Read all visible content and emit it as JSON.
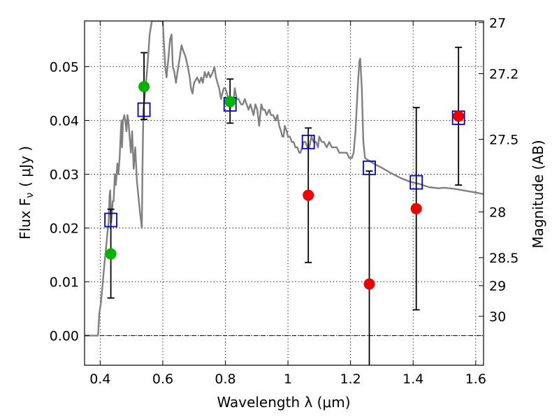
{
  "chart_data": {
    "type": "scatter",
    "xlabel": "Wavelength  λ (μm)",
    "ylabel": "Flux  F",
    "ylabel_sub": "ν",
    "ylabel_unit": "( μJy )",
    "y2label": "Magnitude (AB)",
    "xlim": [
      0.35,
      1.625
    ],
    "ylim": [
      -0.0055,
      0.0585
    ],
    "grid": true,
    "xticks": [
      {
        "value": 0.4,
        "label": "0.4"
      },
      {
        "value": 0.6,
        "label": "0.6"
      },
      {
        "value": 0.8,
        "label": "0.8"
      },
      {
        "value": 1.0,
        "label": "1"
      },
      {
        "value": 1.2,
        "label": "1.2"
      },
      {
        "value": 1.4,
        "label": "1.4"
      },
      {
        "value": 1.6,
        "label": "1.6"
      }
    ],
    "yticks": [
      {
        "value": 0.0,
        "label": "0.00"
      },
      {
        "value": 0.01,
        "label": "0.01"
      },
      {
        "value": 0.02,
        "label": "0.02"
      },
      {
        "value": 0.03,
        "label": "0.03"
      },
      {
        "value": 0.04,
        "label": "0.04"
      },
      {
        "value": 0.05,
        "label": "0.05"
      }
    ],
    "y2ticks": [
      {
        "flux": 0.0582,
        "label": "27"
      },
      {
        "flux": 0.0487,
        "label": "27.2"
      },
      {
        "flux": 0.0365,
        "label": "27.5"
      },
      {
        "flux": 0.023,
        "label": "28"
      },
      {
        "flux": 0.0145,
        "label": "28.5"
      },
      {
        "flux": 0.0093,
        "label": "29"
      },
      {
        "flux": 0.0036,
        "label": "30"
      }
    ],
    "model_spectrum": {
      "color": "#808080",
      "points": [
        [
          0.35,
          0.0
        ],
        [
          0.39,
          0.0
        ],
        [
          0.393,
          0.0
        ],
        [
          0.397,
          0.004
        ],
        [
          0.402,
          0.006
        ],
        [
          0.407,
          0.009
        ],
        [
          0.413,
          0.013
        ],
        [
          0.418,
          0.016
        ],
        [
          0.423,
          0.019
        ],
        [
          0.427,
          0.021
        ],
        [
          0.43,
          0.026
        ],
        [
          0.432,
          0.027
        ],
        [
          0.435,
          0.021
        ],
        [
          0.438,
          0.023
        ],
        [
          0.44,
          0.025
        ],
        [
          0.443,
          0.025
        ],
        [
          0.447,
          0.03
        ],
        [
          0.45,
          0.028
        ],
        [
          0.455,
          0.032
        ],
        [
          0.458,
          0.03
        ],
        [
          0.462,
          0.033
        ],
        [
          0.466,
          0.038
        ],
        [
          0.468,
          0.04
        ],
        [
          0.47,
          0.035
        ],
        [
          0.473,
          0.04
        ],
        [
          0.477,
          0.041
        ],
        [
          0.48,
          0.04
        ],
        [
          0.484,
          0.038
        ],
        [
          0.487,
          0.041
        ],
        [
          0.49,
          0.04
        ],
        [
          0.494,
          0.037
        ],
        [
          0.498,
          0.034
        ],
        [
          0.502,
          0.038
        ],
        [
          0.507,
          0.031
        ],
        [
          0.512,
          0.035
        ],
        [
          0.517,
          0.029
        ],
        [
          0.522,
          0.026
        ],
        [
          0.527,
          0.023
        ],
        [
          0.531,
          0.021
        ],
        [
          0.533,
          0.02
        ],
        [
          0.535,
          0.031
        ],
        [
          0.538,
          0.042
        ],
        [
          0.545,
          0.046
        ],
        [
          0.552,
          0.051
        ],
        [
          0.558,
          0.056
        ],
        [
          0.565,
          0.0585
        ],
        [
          0.6,
          0.0585
        ],
        [
          0.603,
          0.055
        ],
        [
          0.608,
          0.05
        ],
        [
          0.612,
          0.048
        ],
        [
          0.617,
          0.051
        ],
        [
          0.623,
          0.055
        ],
        [
          0.628,
          0.056
        ],
        [
          0.632,
          0.05
        ],
        [
          0.637,
          0.049
        ],
        [
          0.642,
          0.047
        ],
        [
          0.647,
          0.049
        ],
        [
          0.655,
          0.052
        ],
        [
          0.66,
          0.054
        ],
        [
          0.665,
          0.053
        ],
        [
          0.672,
          0.052
        ],
        [
          0.68,
          0.05
        ],
        [
          0.686,
          0.048
        ],
        [
          0.69,
          0.046
        ],
        [
          0.695,
          0.045
        ],
        [
          0.7,
          0.047
        ],
        [
          0.71,
          0.048
        ],
        [
          0.717,
          0.047
        ],
        [
          0.723,
          0.048
        ],
        [
          0.728,
          0.047
        ],
        [
          0.734,
          0.049
        ],
        [
          0.74,
          0.048
        ],
        [
          0.746,
          0.049
        ],
        [
          0.752,
          0.048
        ],
        [
          0.76,
          0.049
        ],
        [
          0.765,
          0.05
        ],
        [
          0.77,
          0.048
        ],
        [
          0.775,
          0.047
        ],
        [
          0.78,
          0.046
        ],
        [
          0.786,
          0.044
        ],
        [
          0.79,
          0.045
        ],
        [
          0.795,
          0.046
        ],
        [
          0.8,
          0.046
        ],
        [
          0.805,
          0.045
        ],
        [
          0.81,
          0.044
        ],
        [
          0.815,
          0.042
        ],
        [
          0.82,
          0.044
        ],
        [
          0.825,
          0.043
        ],
        [
          0.83,
          0.046
        ],
        [
          0.836,
          0.044
        ],
        [
          0.842,
          0.044
        ],
        [
          0.85,
          0.043
        ],
        [
          0.856,
          0.043
        ],
        [
          0.862,
          0.044
        ],
        [
          0.868,
          0.043
        ],
        [
          0.874,
          0.042
        ],
        [
          0.88,
          0.043
        ],
        [
          0.885,
          0.042
        ],
        [
          0.89,
          0.041
        ],
        [
          0.896,
          0.043
        ],
        [
          0.902,
          0.042
        ],
        [
          0.908,
          0.039
        ],
        [
          0.915,
          0.043
        ],
        [
          0.92,
          0.042
        ],
        [
          0.926,
          0.042
        ],
        [
          0.932,
          0.041
        ],
        [
          0.94,
          0.042
        ],
        [
          0.946,
          0.041
        ],
        [
          0.953,
          0.041
        ],
        [
          0.96,
          0.04
        ],
        [
          0.966,
          0.041
        ],
        [
          0.972,
          0.039
        ],
        [
          0.978,
          0.038
        ],
        [
          0.982,
          0.037
        ],
        [
          0.986,
          0.037
        ],
        [
          0.99,
          0.039
        ],
        [
          0.996,
          0.038
        ],
        [
          1.0,
          0.037
        ],
        [
          1.006,
          0.037
        ],
        [
          1.012,
          0.036
        ],
        [
          1.018,
          0.036
        ],
        [
          1.024,
          0.035
        ],
        [
          1.03,
          0.035
        ],
        [
          1.036,
          0.034
        ],
        [
          1.04,
          0.034
        ],
        [
          1.045,
          0.035
        ],
        [
          1.05,
          0.036
        ],
        [
          1.056,
          0.036
        ],
        [
          1.062,
          0.035
        ],
        [
          1.068,
          0.035
        ],
        [
          1.075,
          0.037
        ],
        [
          1.082,
          0.036
        ],
        [
          1.09,
          0.036
        ],
        [
          1.096,
          0.035
        ],
        [
          1.1,
          0.037
        ],
        [
          1.108,
          0.036
        ],
        [
          1.115,
          0.036
        ],
        [
          1.124,
          0.035
        ],
        [
          1.132,
          0.036
        ],
        [
          1.14,
          0.035
        ],
        [
          1.148,
          0.035
        ],
        [
          1.156,
          0.035
        ],
        [
          1.164,
          0.034
        ],
        [
          1.172,
          0.034
        ],
        [
          1.18,
          0.034
        ],
        [
          1.188,
          0.034
        ],
        [
          1.196,
          0.033
        ],
        [
          1.204,
          0.033
        ],
        [
          1.21,
          0.034
        ],
        [
          1.216,
          0.038
        ],
        [
          1.222,
          0.045
        ],
        [
          1.228,
          0.051
        ],
        [
          1.231,
          0.0515
        ],
        [
          1.236,
          0.046
        ],
        [
          1.241,
          0.036
        ],
        [
          1.246,
          0.033
        ],
        [
          1.26,
          0.0325
        ],
        [
          1.28,
          0.0318
        ],
        [
          1.3,
          0.0312
        ],
        [
          1.33,
          0.0302
        ],
        [
          1.36,
          0.0293
        ],
        [
          1.39,
          0.0286
        ],
        [
          1.42,
          0.0282
        ],
        [
          1.45,
          0.0276
        ],
        [
          1.48,
          0.0274
        ],
        [
          1.5,
          0.0275
        ],
        [
          1.53,
          0.0273
        ],
        [
          1.56,
          0.027
        ],
        [
          1.6,
          0.0266
        ],
        [
          1.625,
          0.0263
        ]
      ]
    },
    "series": [
      {
        "marker": "open-square",
        "color": "#0000cc",
        "x": [
          0.434,
          0.54,
          0.815,
          1.065,
          1.26,
          1.41,
          1.545
        ],
        "y": [
          0.0215,
          0.042,
          0.043,
          0.036,
          0.0312,
          0.0285,
          0.0405
        ]
      },
      {
        "marker": "filled-circle",
        "color": "#00b300",
        "x": [
          0.434,
          0.54,
          0.815
        ],
        "y": [
          0.0152,
          0.0463,
          0.0435
        ],
        "yerr_low": [
          0.0082,
          0.0061,
          0.004
        ],
        "yerr_high": [
          0.0083,
          0.0063,
          0.0042
        ]
      },
      {
        "marker": "filled-circle",
        "color": "#ee0000",
        "x": [
          1.065,
          1.26,
          1.41,
          1.545
        ],
        "y": [
          0.0261,
          0.0096,
          0.0236,
          0.0408
        ],
        "yerr_low": [
          0.0125,
          0.016,
          0.0188,
          0.0128
        ],
        "yerr_high": [
          0.0125,
          0.021,
          0.0188,
          0.0128
        ]
      }
    ]
  }
}
